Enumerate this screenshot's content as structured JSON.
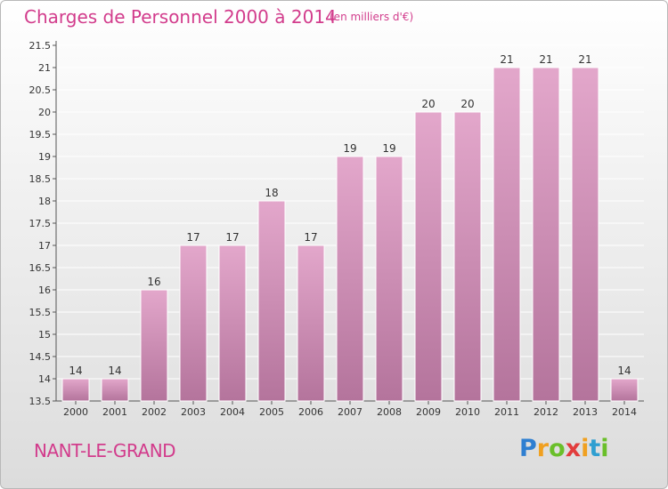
{
  "chart_data": {
    "type": "bar",
    "title": "Charges de Personnel 2000 à 2014",
    "subtitle": "(en milliers d'€)",
    "categories": [
      "2000",
      "2001",
      "2002",
      "2003",
      "2004",
      "2005",
      "2006",
      "2007",
      "2008",
      "2009",
      "2010",
      "2011",
      "2012",
      "2013",
      "2014"
    ],
    "values": [
      14,
      14,
      16,
      17,
      17,
      18,
      17,
      19,
      19,
      20,
      20,
      21,
      21,
      21,
      14
    ],
    "data_labels": [
      "14",
      "14",
      "16",
      "17",
      "17",
      "18",
      "17",
      "19",
      "19",
      "20",
      "20",
      "21",
      "21",
      "21",
      "14"
    ],
    "y_ticks": [
      "13.5",
      "14",
      "14.5",
      "15",
      "15.5",
      "16",
      "16.5",
      "17",
      "17.5",
      "18",
      "18.5",
      "19",
      "19.5",
      "20",
      "20.5",
      "21",
      "21.5"
    ],
    "ylim": [
      13.5,
      21.5
    ],
    "xlabel": "",
    "ylabel": "",
    "grid": true,
    "colors": {
      "bar_top": "#e3a7cb",
      "bar_bottom": "#b4749c",
      "grid": "#ffffff",
      "text": "#d23c8c"
    }
  },
  "commune": "NANT-LE-GRAND",
  "logo": {
    "letters": [
      "P",
      "r",
      "o",
      "x",
      "i",
      "t",
      "i"
    ],
    "colors": [
      "#2f7fd1",
      "#f0a020",
      "#6abf2a",
      "#e23c3c",
      "#f0a020",
      "#2f9fd1",
      "#6abf2a"
    ]
  }
}
